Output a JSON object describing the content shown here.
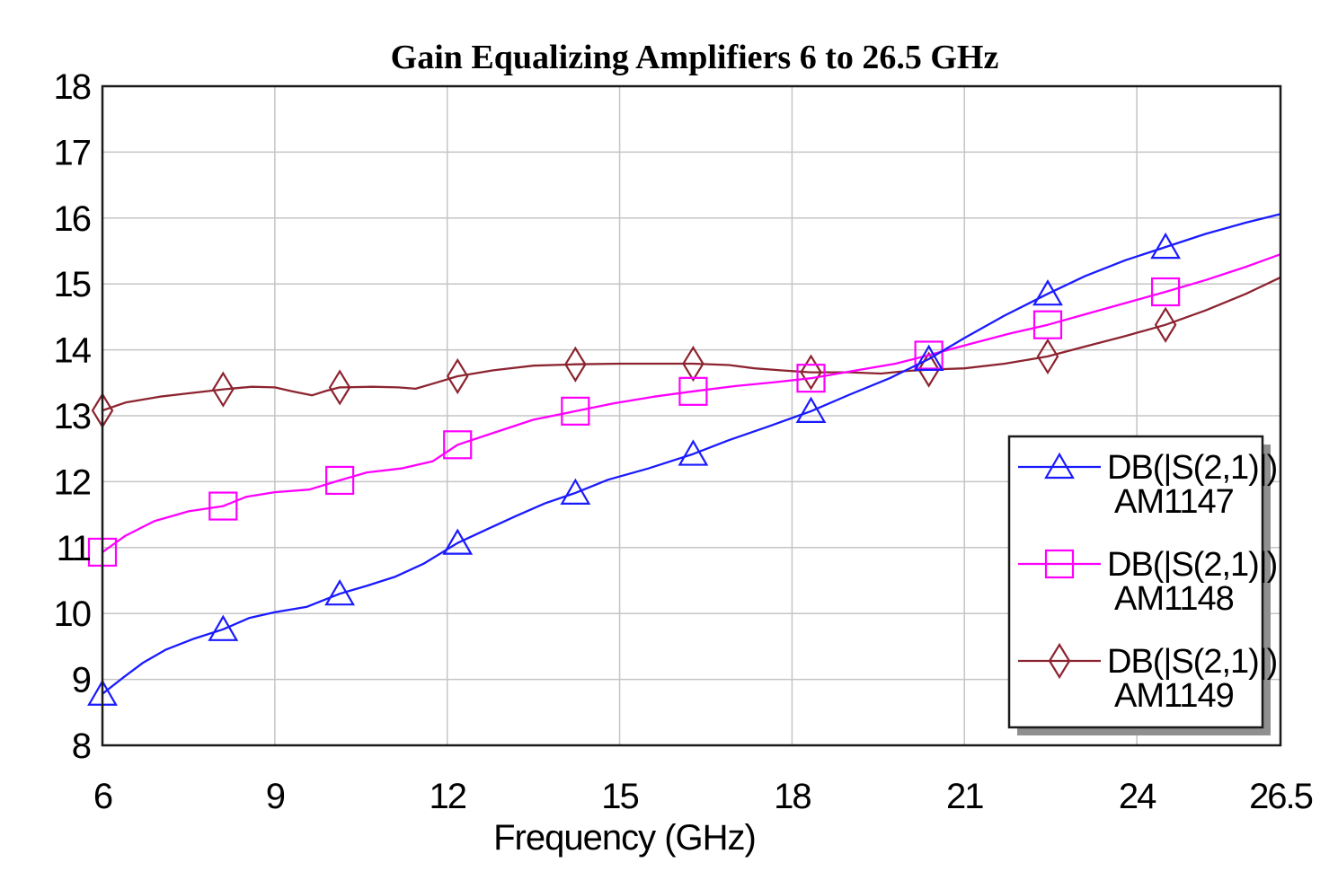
{
  "title": "Gain Equalizing Amplifiers 6 to 26.5 GHz",
  "axis": {
    "xlabel": "Frequency (GHz)",
    "x_tick_labels": [
      "6",
      "9",
      "12",
      "15",
      "18",
      "21",
      "24",
      "26.5"
    ],
    "y_tick_labels": [
      "8",
      "9",
      "10",
      "11",
      "12",
      "13",
      "14",
      "15",
      "16",
      "17",
      "18"
    ]
  },
  "colors": {
    "am1147": "#1a1aff",
    "am1148": "#ff00ff",
    "am1149": "#8c2430",
    "grid": "#c5c5c5",
    "border": "#1a1a1a",
    "legend_shadow": "#8f8f8f",
    "background": "#ffffff"
  },
  "legend": {
    "entries": [
      {
        "line1": "DB(|S(2,1)|)",
        "line2": "AM1147",
        "series": "am1147"
      },
      {
        "line1": "DB(|S(2,1)|)",
        "line2": "AM1148",
        "series": "am1148"
      },
      {
        "line1": "DB(|S(2,1)|)",
        "line2": "AM1149",
        "series": "am1149"
      }
    ]
  },
  "chart_data": {
    "type": "line",
    "title": "Gain Equalizing Amplifiers 6 to 26.5 GHz",
    "xlabel": "Frequency (GHz)",
    "ylabel": "",
    "xlim": [
      6,
      26.5
    ],
    "ylim": [
      8,
      18
    ],
    "x_ticks": [
      6,
      9,
      12,
      15,
      18,
      21,
      24,
      26.5
    ],
    "y_ticks": [
      8,
      9,
      10,
      11,
      12,
      13,
      14,
      15,
      16,
      17,
      18
    ],
    "grid_x": [
      9,
      12,
      15,
      18,
      21,
      24
    ],
    "grid_y": [
      9,
      10,
      11,
      12,
      13,
      14,
      15,
      16,
      17
    ],
    "grid": true,
    "legend_position": "inside-right",
    "marker_x": [
      6.0,
      8.1,
      10.13,
      12.18,
      14.23,
      16.28,
      18.33,
      20.38,
      22.45,
      24.5
    ],
    "series": [
      {
        "name": "DB(|S(2,1)|) AM1147",
        "id": "am1147",
        "marker": "triangle",
        "marker_y": [
          8.78,
          9.76,
          10.3,
          11.07,
          11.83,
          12.42,
          13.07,
          13.86,
          14.85,
          15.56
        ],
        "points": [
          [
            6,
            8.78
          ],
          [
            6.35,
            9.02
          ],
          [
            6.7,
            9.25
          ],
          [
            7.1,
            9.45
          ],
          [
            7.6,
            9.62
          ],
          [
            8.1,
            9.76
          ],
          [
            8.55,
            9.93
          ],
          [
            9,
            10.02
          ],
          [
            9.55,
            10.1
          ],
          [
            10.13,
            10.3
          ],
          [
            10.6,
            10.42
          ],
          [
            11.1,
            10.56
          ],
          [
            11.6,
            10.76
          ],
          [
            12.18,
            11.07
          ],
          [
            12.7,
            11.28
          ],
          [
            13.2,
            11.48
          ],
          [
            13.7,
            11.67
          ],
          [
            14.23,
            11.83
          ],
          [
            14.8,
            12.03
          ],
          [
            15.5,
            12.2
          ],
          [
            16.28,
            12.42
          ],
          [
            16.9,
            12.63
          ],
          [
            17.6,
            12.84
          ],
          [
            18.33,
            13.07
          ],
          [
            19,
            13.32
          ],
          [
            19.7,
            13.57
          ],
          [
            20.38,
            13.86
          ],
          [
            21,
            14.18
          ],
          [
            21.7,
            14.52
          ],
          [
            22.45,
            14.85
          ],
          [
            23.1,
            15.12
          ],
          [
            23.8,
            15.36
          ],
          [
            24.5,
            15.56
          ],
          [
            25.2,
            15.76
          ],
          [
            25.9,
            15.93
          ],
          [
            26.5,
            16.06
          ]
        ]
      },
      {
        "name": "DB(|S(2,1)|) AM1148",
        "id": "am1148",
        "marker": "square",
        "marker_y": [
          10.93,
          11.63,
          12.02,
          12.56,
          13.07,
          13.37,
          13.57,
          13.92,
          14.38,
          14.88
        ],
        "points": [
          [
            6,
            10.93
          ],
          [
            6.4,
            11.18
          ],
          [
            6.9,
            11.4
          ],
          [
            7.5,
            11.55
          ],
          [
            8.1,
            11.63
          ],
          [
            8.5,
            11.77
          ],
          [
            9,
            11.84
          ],
          [
            9.6,
            11.88
          ],
          [
            10.13,
            12.02
          ],
          [
            10.6,
            12.14
          ],
          [
            11.2,
            12.2
          ],
          [
            11.75,
            12.31
          ],
          [
            12.18,
            12.56
          ],
          [
            12.8,
            12.74
          ],
          [
            13.5,
            12.94
          ],
          [
            14.23,
            13.07
          ],
          [
            14.9,
            13.19
          ],
          [
            15.6,
            13.29
          ],
          [
            16.28,
            13.37
          ],
          [
            17,
            13.45
          ],
          [
            17.7,
            13.51
          ],
          [
            18.33,
            13.57
          ],
          [
            19,
            13.67
          ],
          [
            19.8,
            13.79
          ],
          [
            20.38,
            13.92
          ],
          [
            21.1,
            14.09
          ],
          [
            21.8,
            14.25
          ],
          [
            22.45,
            14.38
          ],
          [
            23.1,
            14.54
          ],
          [
            23.8,
            14.71
          ],
          [
            24.5,
            14.88
          ],
          [
            25.2,
            15.06
          ],
          [
            25.9,
            15.26
          ],
          [
            26.5,
            15.45
          ]
        ]
      },
      {
        "name": "DB(|S(2,1)|) AM1149",
        "id": "am1149",
        "marker": "diamond",
        "marker_y": [
          13.08,
          13.4,
          13.43,
          13.6,
          13.78,
          13.79,
          13.66,
          13.7,
          13.9,
          14.38
        ],
        "points": [
          [
            6,
            13.08
          ],
          [
            6.4,
            13.2
          ],
          [
            7,
            13.29
          ],
          [
            7.5,
            13.34
          ],
          [
            8.1,
            13.4
          ],
          [
            8.6,
            13.44
          ],
          [
            9,
            13.43
          ],
          [
            9.3,
            13.37
          ],
          [
            9.65,
            13.31
          ],
          [
            9.9,
            13.38
          ],
          [
            10.13,
            13.43
          ],
          [
            10.7,
            13.44
          ],
          [
            11.15,
            13.43
          ],
          [
            11.45,
            13.41
          ],
          [
            11.8,
            13.5
          ],
          [
            12.18,
            13.6
          ],
          [
            12.8,
            13.69
          ],
          [
            13.5,
            13.76
          ],
          [
            14.23,
            13.78
          ],
          [
            15,
            13.79
          ],
          [
            15.7,
            13.79
          ],
          [
            16.28,
            13.79
          ],
          [
            16.9,
            13.77
          ],
          [
            17.35,
            13.72
          ],
          [
            17.8,
            13.69
          ],
          [
            18.33,
            13.66
          ],
          [
            19,
            13.66
          ],
          [
            19.55,
            13.64
          ],
          [
            20,
            13.68
          ],
          [
            20.38,
            13.7
          ],
          [
            21,
            13.72
          ],
          [
            21.7,
            13.79
          ],
          [
            22.45,
            13.9
          ],
          [
            23.1,
            14.05
          ],
          [
            23.8,
            14.21
          ],
          [
            24.5,
            14.38
          ],
          [
            25.2,
            14.6
          ],
          [
            25.9,
            14.85
          ],
          [
            26.5,
            15.1
          ]
        ]
      }
    ]
  }
}
